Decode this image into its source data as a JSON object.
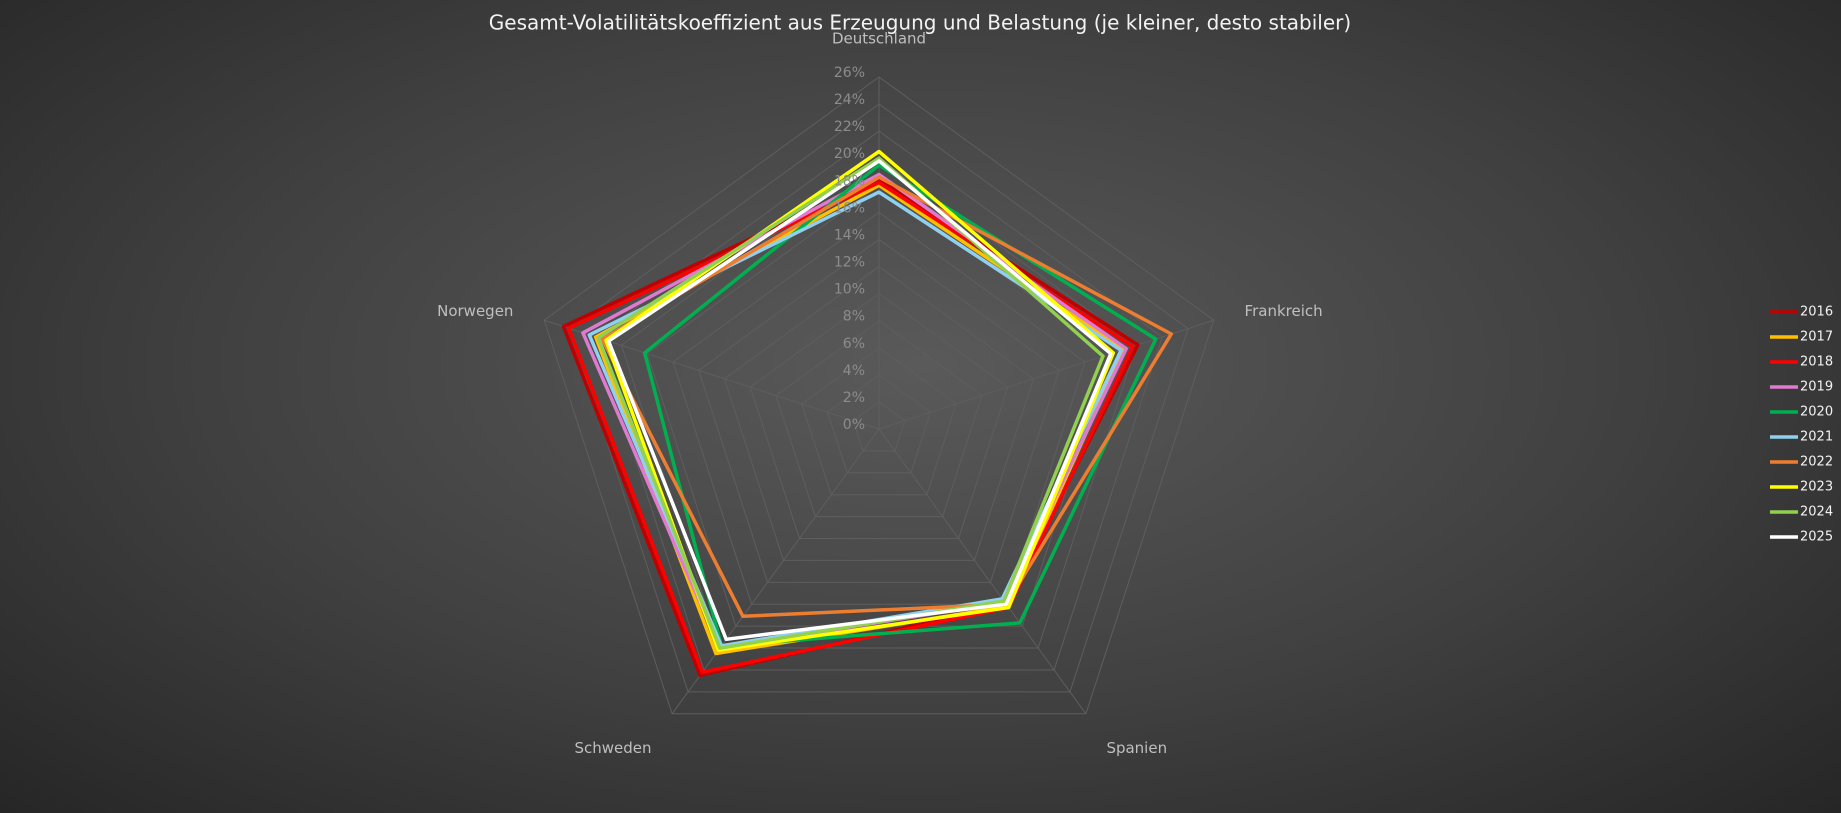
{
  "chart_data": {
    "type": "radar",
    "title": "Gesamt-Volatilitätskoeffizient aus Erzeugung und Belastung (je kleiner, desto stabiler)",
    "categories": [
      "Deutschland",
      "Frankreich",
      "Spanien",
      "Schweden",
      "Norwegen"
    ],
    "ylim": [
      0,
      26
    ],
    "yticks": [
      {
        "value": 0,
        "label": "0%"
      },
      {
        "value": 2,
        "label": "2%"
      },
      {
        "value": 4,
        "label": "4%"
      },
      {
        "value": 6,
        "label": "6%"
      },
      {
        "value": 8,
        "label": "8%"
      },
      {
        "value": 10,
        "label": "10%"
      },
      {
        "value": 12,
        "label": "12%"
      },
      {
        "value": 14,
        "label": "14%"
      },
      {
        "value": 16,
        "label": "16%"
      },
      {
        "value": 18,
        "label": "18%"
      },
      {
        "value": 20,
        "label": "20%"
      },
      {
        "value": 22,
        "label": "22%"
      },
      {
        "value": 24,
        "label": "24%"
      },
      {
        "value": 26,
        "label": "26%"
      }
    ],
    "grid": true,
    "legend": "right",
    "series": [
      {
        "name": "2016",
        "color": "#c00000",
        "values": [
          18.5,
          20.1,
          16.0,
          22.5,
          24.5
        ]
      },
      {
        "name": "2017",
        "color": "#ffc000",
        "values": [
          18.0,
          19.0,
          16.2,
          20.5,
          22.0
        ]
      },
      {
        "name": "2018",
        "color": "#ff0000",
        "values": [
          18.2,
          19.7,
          16.3,
          22.2,
          24.1
        ]
      },
      {
        "name": "2019",
        "color": "#e07ad0",
        "values": [
          18.8,
          19.2,
          15.8,
          20.0,
          23.0
        ]
      },
      {
        "name": "2020",
        "color": "#00b050",
        "values": [
          19.5,
          21.5,
          17.7,
          19.8,
          18.2
        ]
      },
      {
        "name": "2021",
        "color": "#8fd0f0",
        "values": [
          17.5,
          18.8,
          15.5,
          19.8,
          22.5
        ]
      },
      {
        "name": "2022",
        "color": "#ed7d31",
        "values": [
          18.6,
          22.7,
          16.0,
          17.1,
          21.5
        ]
      },
      {
        "name": "2023",
        "color": "#ffff00",
        "values": [
          20.5,
          18.2,
          16.3,
          20.2,
          21.2
        ]
      },
      {
        "name": "2024",
        "color": "#92d050",
        "values": [
          20.0,
          17.4,
          15.7,
          20.0,
          21.8
        ]
      },
      {
        "name": "2025",
        "color": "#ffffff",
        "values": [
          19.8,
          18.0,
          16.0,
          19.2,
          21.0
        ]
      }
    ]
  }
}
